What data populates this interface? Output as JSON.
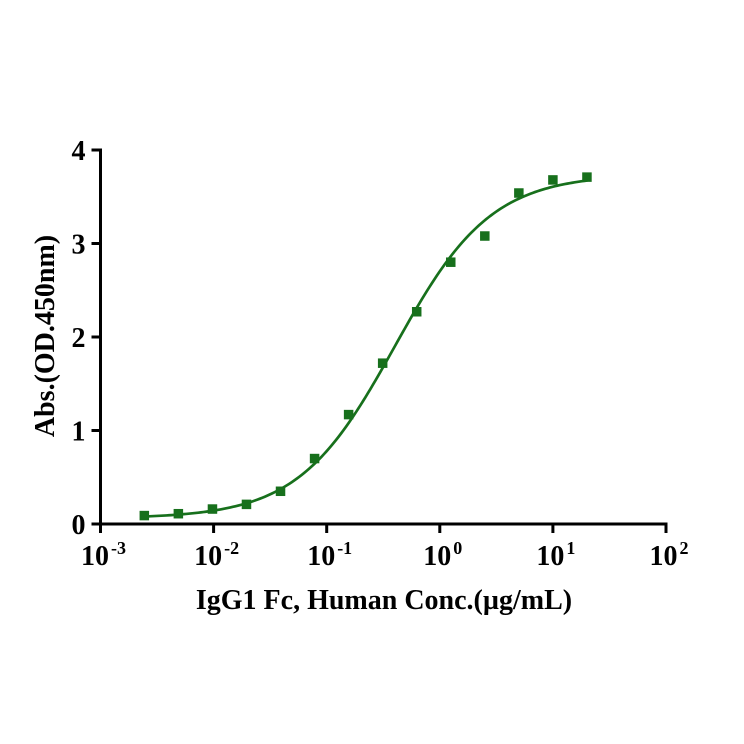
{
  "figure": {
    "background_color": "#ffffff",
    "axis_color": "#000000"
  },
  "chart_data": {
    "type": "scatter",
    "title": "",
    "xlabel": "IgG1 Fc, Human Conc.(µg/mL)",
    "ylabel": "Abs.(OD.450nm)",
    "x_scale": "log10",
    "xlim": [
      0.001,
      100
    ],
    "ylim": [
      0,
      4
    ],
    "x_tick_base": "10",
    "x_tick_exponents": [
      -3,
      -2,
      -1,
      0,
      1,
      2
    ],
    "y_ticks": [
      0,
      1,
      2,
      3,
      4
    ],
    "grid": false,
    "legend_position": "none",
    "frame": "L-shape",
    "series": [
      {
        "name": "IgG1 Fc, Human",
        "marker": "square",
        "color": "#17701c",
        "points": [
          {
            "x": 0.00244,
            "y": 0.09
          },
          {
            "x": 0.00488,
            "y": 0.11
          },
          {
            "x": 0.00977,
            "y": 0.16
          },
          {
            "x": 0.01953,
            "y": 0.21
          },
          {
            "x": 0.03906,
            "y": 0.35
          },
          {
            "x": 0.07813,
            "y": 0.7
          },
          {
            "x": 0.15625,
            "y": 1.17
          },
          {
            "x": 0.3125,
            "y": 1.72
          },
          {
            "x": 0.625,
            "y": 2.27
          },
          {
            "x": 1.25,
            "y": 2.8
          },
          {
            "x": 2.5,
            "y": 3.08
          },
          {
            "x": 5,
            "y": 3.54
          },
          {
            "x": 10,
            "y": 3.68
          },
          {
            "x": 20,
            "y": 3.71
          }
        ],
        "fit": {
          "model": "4PL",
          "bottom": 0.06,
          "top": 3.74,
          "ec50": 0.4,
          "hill": 1.02,
          "x_start": 0.00244,
          "x_end": 20
        }
      }
    ]
  }
}
